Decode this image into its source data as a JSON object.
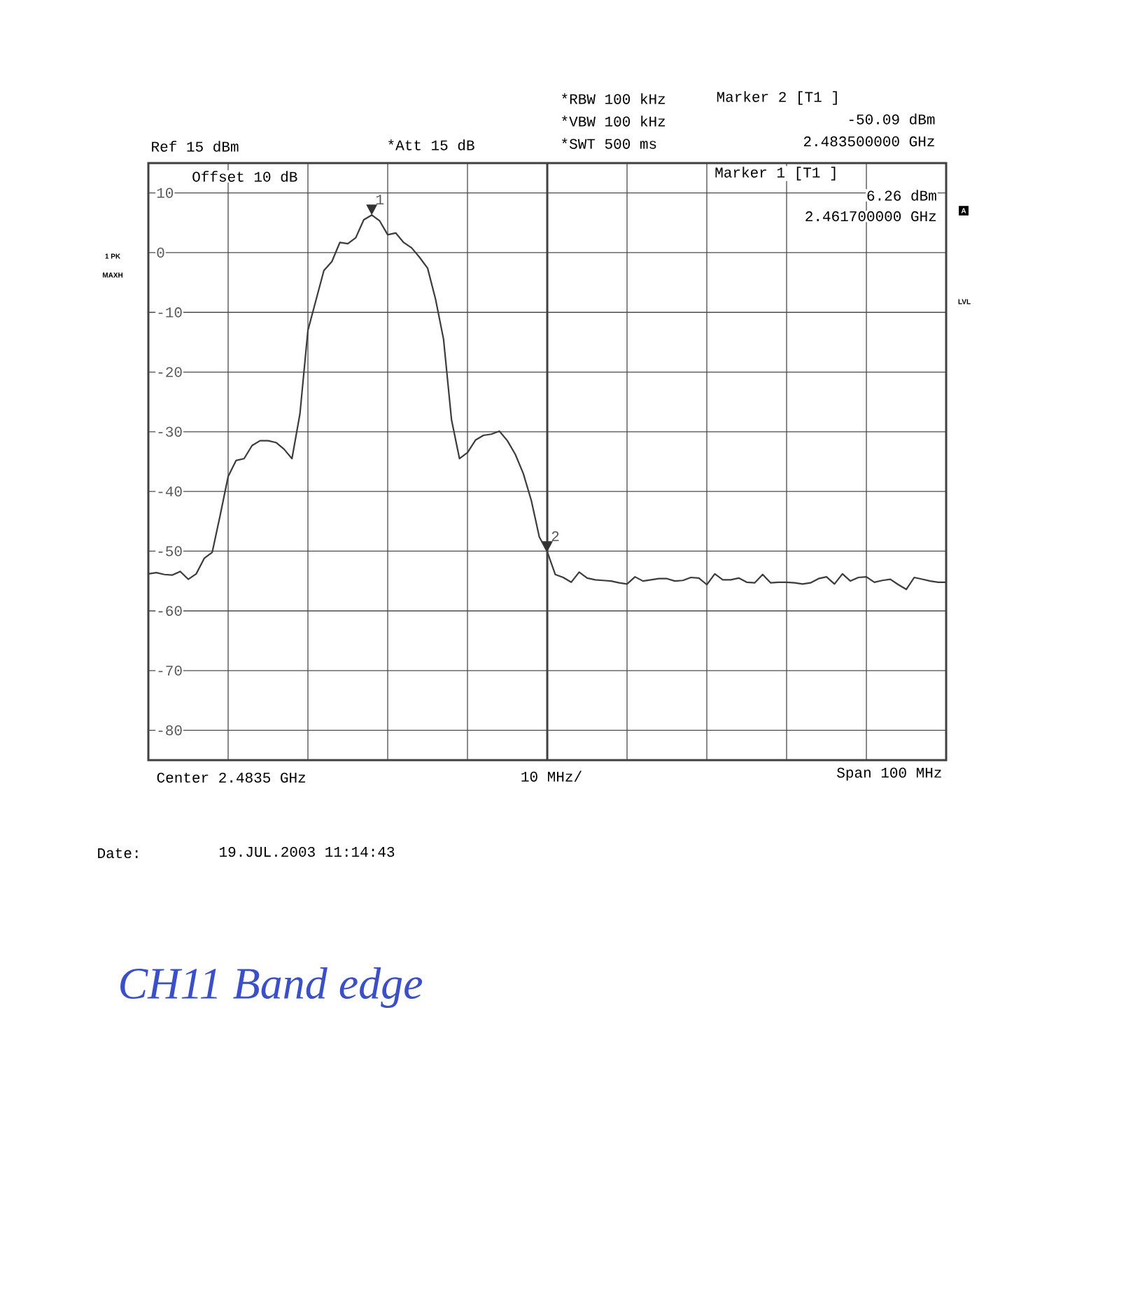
{
  "chart_data": {
    "type": "line",
    "categories": [
      null,
      null,
      null,
      null,
      null,
      null,
      null,
      null,
      null,
      null,
      null,
      null,
      null,
      null,
      null,
      null,
      null,
      null,
      null,
      null,
      null,
      null,
      null,
      null,
      null,
      null,
      null,
      null,
      null,
      null,
      null,
      null,
      null,
      null,
      null,
      null,
      null,
      null,
      null,
      null,
      null,
      null,
      null,
      null,
      null,
      null,
      null,
      null,
      null,
      null,
      null,
      null,
      null,
      null,
      null,
      null,
      null,
      null,
      null,
      null,
      null,
      null,
      null,
      null,
      null,
      null,
      null,
      null,
      null,
      null,
      null,
      null,
      null,
      null,
      null,
      null,
      null,
      null,
      null,
      null,
      null,
      null,
      null,
      null,
      null,
      null,
      null,
      null,
      null,
      null,
      null,
      null,
      null,
      null,
      null,
      null,
      null,
      null,
      null,
      null,
      null
    ],
    "values": [
      -53.8,
      -53.6,
      -53.9,
      -54,
      -53.4,
      -54.7,
      -53.8,
      -51.2,
      -50.2,
      -44,
      -37.5,
      -34.8,
      -34.5,
      -32.3,
      -31.5,
      -31.5,
      -31.8,
      -32.9,
      -34.5,
      -27,
      -13,
      -8,
      -3,
      -1.5,
      1.7,
      1.5,
      2.5,
      5.5,
      6.3,
      5.3,
      3,
      3.3,
      1.7,
      0.8,
      -0.8,
      -2.6,
      -7.8,
      -14.5,
      -28,
      -34.5,
      -33.5,
      -31.4,
      -30.6,
      -30.4,
      -29.9,
      -31.5,
      -33.8,
      -37,
      -41.5,
      -47.6,
      -50.1,
      -53.9,
      -54.4,
      -55.2,
      -53.5,
      -54.5,
      -54.8,
      -54.9,
      -55,
      -55.3,
      -55.5,
      -54.3,
      -55,
      -54.8,
      -54.6,
      -54.6,
      -55,
      -54.9,
      -54.4,
      -54.5,
      -55.6,
      -53.8,
      -54.8,
      -54.8,
      -54.5,
      -55.2,
      -55.3,
      -53.9,
      -55.3,
      -55.2,
      -55.2,
      -55.3,
      -55.5,
      -55.3,
      -54.6,
      -54.3,
      -55.5,
      -53.8,
      -55,
      -54.4,
      -54.3,
      -55.2,
      -54.9,
      -54.7,
      -55.6,
      -56.4,
      -54.4,
      -54.7,
      -55,
      -55.2,
      -55.2
    ],
    "color": "#3c3c3c",
    "ylim": [
      -85,
      15
    ],
    "yticks": [
      -80,
      -70,
      -60,
      -50,
      -40,
      -30,
      -20,
      -10,
      0,
      10
    ],
    "grid": true,
    "annotations": [
      "Ref 15 dBm",
      "*Att 15 dB",
      "*RBW 100 kHz",
      "*VBW 100 kHz",
      "*SWT 500 ms",
      "Marker 2 [T1 ]",
      "-50.09 dBm",
      "2.483500000 GHz",
      "Offset 10 dB",
      "Marker 1 [T1 ]",
      "6.26 dBm",
      "2.461700000 GHz",
      "A",
      "1 PK",
      "MAXH",
      "LVL",
      "Center 2.4835 GHz",
      "10 MHz/",
      "Span 100 MHz",
      "Date:",
      "19.JUL.2003 11:14:43",
      "CH11 Band edge",
      "1",
      "2"
    ]
  }
}
